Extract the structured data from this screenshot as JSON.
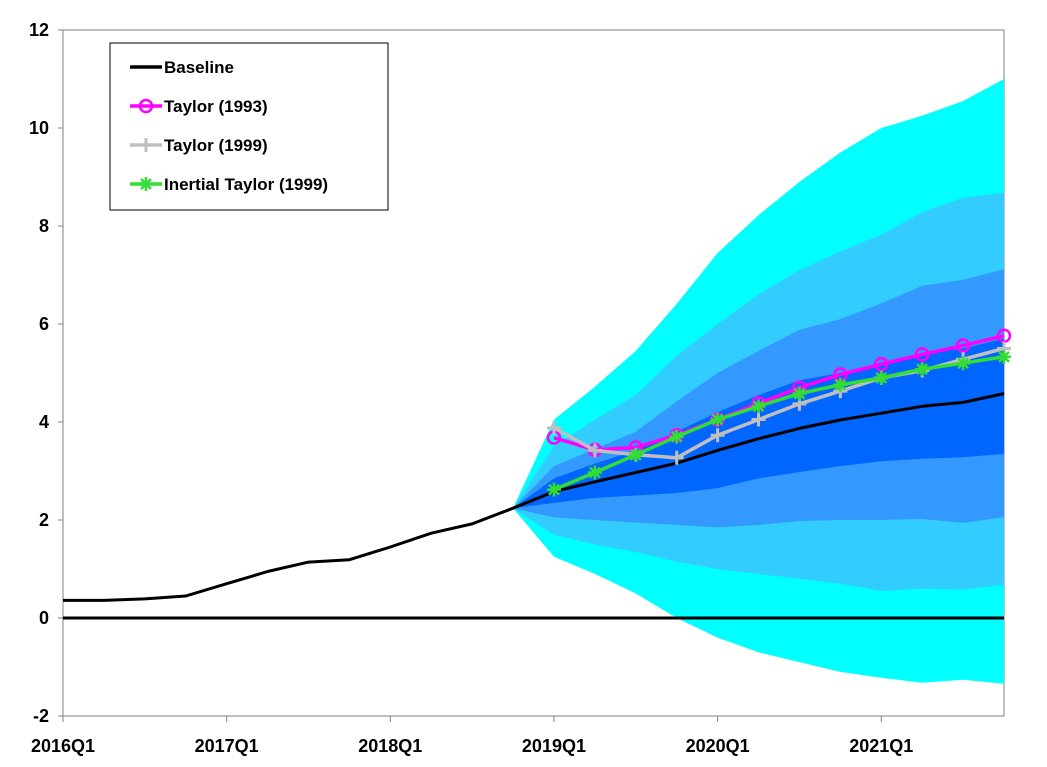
{
  "chart_data": {
    "type": "line",
    "title": "",
    "xlabel": "",
    "ylabel": "",
    "ylim": [
      -2,
      12
    ],
    "yticks": [
      "-2",
      "0",
      "2",
      "4",
      "6",
      "8",
      "10",
      "12"
    ],
    "x_categories": [
      "2016Q1",
      "2016Q2",
      "2016Q3",
      "2016Q4",
      "2017Q1",
      "2017Q2",
      "2017Q3",
      "2017Q4",
      "2018Q1",
      "2018Q2",
      "2018Q3",
      "2018Q4",
      "2019Q1",
      "2019Q2",
      "2019Q3",
      "2019Q4",
      "2020Q1",
      "2020Q2",
      "2020Q3",
      "2020Q4",
      "2021Q1",
      "2021Q2",
      "2021Q3",
      "2021Q4"
    ],
    "x_tick_labels": [
      "2016Q1",
      "2017Q1",
      "2018Q1",
      "2019Q1",
      "2020Q1",
      "2021Q1"
    ],
    "legend_position": "top-left",
    "grid": false,
    "series": [
      {
        "name": "Baseline",
        "color": "#000000",
        "marker": "none",
        "start_index": 0,
        "values": [
          0.36,
          0.36,
          0.39,
          0.45,
          0.7,
          0.95,
          1.14,
          1.19,
          1.45,
          1.73,
          1.92,
          2.24,
          2.58,
          2.78,
          2.97,
          3.16,
          3.42,
          3.66,
          3.87,
          4.04,
          4.18,
          4.32,
          4.4,
          4.58
        ]
      },
      {
        "name": "Taylor (1993)",
        "color": "#ff00ff",
        "marker": "circle",
        "start_index": 12,
        "values": [
          3.68,
          3.43,
          3.48,
          3.73,
          4.05,
          4.38,
          4.7,
          4.97,
          5.18,
          5.38,
          5.56,
          5.76
        ]
      },
      {
        "name": "Taylor (1999)",
        "color": "#bfbfbf",
        "marker": "plus",
        "start_index": 12,
        "values": [
          3.88,
          3.42,
          3.33,
          3.27,
          3.73,
          4.05,
          4.37,
          4.63,
          4.9,
          5.05,
          5.28,
          5.5
        ]
      },
      {
        "name": "Inertial Taylor (1999)",
        "color": "#33dd33",
        "marker": "asterisk",
        "start_index": 12,
        "values": [
          2.62,
          2.97,
          3.33,
          3.7,
          4.05,
          4.32,
          4.58,
          4.76,
          4.9,
          5.08,
          5.2,
          5.33
        ]
      }
    ],
    "fan_bands": {
      "start_index": 11,
      "colors": [
        "#00ffff",
        "#33ccff",
        "#3399ff",
        "#0066ff"
      ],
      "outer": {
        "upper": [
          2.24,
          4.05,
          4.72,
          5.45,
          6.41,
          7.45,
          8.22,
          8.9,
          9.5,
          10.0,
          10.25,
          10.55,
          11.0
        ],
        "lower": [
          2.24,
          1.25,
          0.9,
          0.5,
          0.0,
          -0.4,
          -0.7,
          -0.9,
          -1.1,
          -1.22,
          -1.32,
          -1.26,
          -1.34
        ]
      },
      "mid": {
        "upper": [
          2.24,
          3.5,
          4.05,
          4.55,
          5.35,
          6.0,
          6.6,
          7.1,
          7.48,
          7.82,
          8.28,
          8.58,
          8.68
        ],
        "lower": [
          2.24,
          1.7,
          1.5,
          1.35,
          1.15,
          1.0,
          0.9,
          0.8,
          0.7,
          0.55,
          0.6,
          0.58,
          0.68
        ]
      },
      "inner": {
        "upper": [
          2.24,
          3.1,
          3.45,
          3.8,
          4.42,
          5.0,
          5.45,
          5.88,
          6.1,
          6.42,
          6.78,
          6.9,
          7.12
        ],
        "lower": [
          2.24,
          2.05,
          2.0,
          1.95,
          1.9,
          1.85,
          1.9,
          1.98,
          2.0,
          2.0,
          2.02,
          1.94,
          2.06
        ]
      },
      "core": {
        "upper": [
          2.24,
          2.85,
          3.15,
          3.42,
          3.8,
          4.2,
          4.55,
          4.85,
          5.0,
          5.2,
          5.4,
          5.5,
          5.7
        ],
        "lower": [
          2.24,
          2.35,
          2.45,
          2.5,
          2.55,
          2.65,
          2.85,
          2.98,
          3.1,
          3.2,
          3.25,
          3.28,
          3.35
        ]
      }
    }
  }
}
